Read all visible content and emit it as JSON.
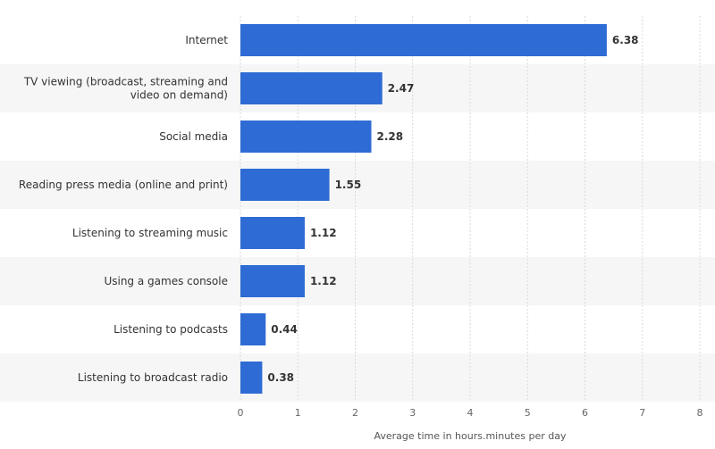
{
  "chart_data": {
    "type": "bar",
    "orientation": "horizontal",
    "categories": [
      [
        "Internet"
      ],
      [
        "TV viewing (broadcast, streaming and",
        "video on demand)"
      ],
      [
        "Social media"
      ],
      [
        "Reading press media (online and print)"
      ],
      [
        "Listening to streaming music"
      ],
      [
        "Using a games console"
      ],
      [
        "Listening to podcasts"
      ],
      [
        "Listening to broadcast radio"
      ]
    ],
    "values": [
      6.38,
      2.47,
      2.28,
      1.55,
      1.12,
      1.12,
      0.44,
      0.38
    ],
    "value_labels": [
      "6.38",
      "2.47",
      "2.28",
      "1.55",
      "1.12",
      "1.12",
      "0.44",
      "0.38"
    ],
    "xlabel": "Average time in hours.minutes per day",
    "ylabel": "",
    "xlim": [
      0,
      8
    ],
    "xticks": [
      "0",
      "1",
      "2",
      "3",
      "4",
      "5",
      "6",
      "7",
      "8"
    ],
    "grid": true,
    "bar_color": "#2f6bd4",
    "band_color": "#f6f6f6",
    "grid_color": "#d9d9d9"
  }
}
